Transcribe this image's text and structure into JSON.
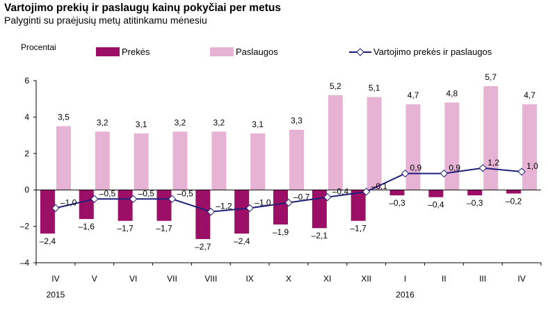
{
  "title": "Vartojimo prekių ir paslaugų kainų pokyčiai per metus",
  "subtitle": "Palyginti su praėjusių metų atitinkamu mėnesiu",
  "colors": {
    "goods": "#9c0f66",
    "services": "#e6b3d4",
    "line": "#1f1f7a",
    "axis": "#000000"
  },
  "chart_data": {
    "type": "bar",
    "ylabel": "Procentai",
    "ylim": [
      -4,
      6
    ],
    "yticks": [
      -4,
      -2,
      0,
      2,
      4,
      6
    ],
    "grid": false,
    "legend": "top",
    "categories": [
      "IV",
      "V",
      "VI",
      "VII",
      "VIII",
      "IX",
      "X",
      "XI",
      "XII",
      "I",
      "II",
      "III",
      "IV"
    ],
    "year_labels": [
      {
        "label": "2015",
        "at_category_index": 0
      },
      {
        "label": "2016",
        "at_category_index": 9
      }
    ],
    "series": [
      {
        "name": "Prekės",
        "kind": "bar",
        "values": [
          -2.4,
          -1.6,
          -1.7,
          -1.7,
          -2.7,
          -2.4,
          -1.9,
          -2.1,
          -1.7,
          -0.3,
          -0.4,
          -0.3,
          -0.2
        ],
        "labels": [
          "–2,4",
          "–1,6",
          "–1,7",
          "–1,7",
          "–2,7",
          "–2,4",
          "–1,9",
          "–2,1",
          "–1,7",
          "–0,3",
          "–0,4",
          "–0,3",
          "–0,2"
        ]
      },
      {
        "name": "Paslaugos",
        "kind": "bar",
        "values": [
          3.5,
          3.2,
          3.1,
          3.2,
          3.2,
          3.1,
          3.3,
          5.2,
          5.1,
          4.7,
          4.8,
          5.7,
          4.7
        ],
        "labels": [
          "3,5",
          "3,2",
          "3,1",
          "3,2",
          "3,2",
          "3,1",
          "3,3",
          "5,2",
          "5,1",
          "4,7",
          "4,8",
          "5,7",
          "4,7"
        ]
      },
      {
        "name": "Vartojimo prekės ir paslaugos",
        "kind": "line",
        "values": [
          -1.0,
          -0.5,
          -0.5,
          -0.5,
          -1.2,
          -1.0,
          -0.7,
          -0.4,
          -0.1,
          0.9,
          0.9,
          1.2,
          1.0
        ],
        "labels": [
          "–1,0",
          "–0,5",
          "–0,5",
          "–0,5",
          "–1,2",
          "–1,0",
          "–0,7",
          "–0,4",
          "–0,1",
          "0,9",
          "0,9",
          "1,2",
          "1,0"
        ]
      }
    ],
    "ytick_labels": [
      "–4",
      "–2",
      "0",
      "2",
      "4",
      "6"
    ]
  }
}
